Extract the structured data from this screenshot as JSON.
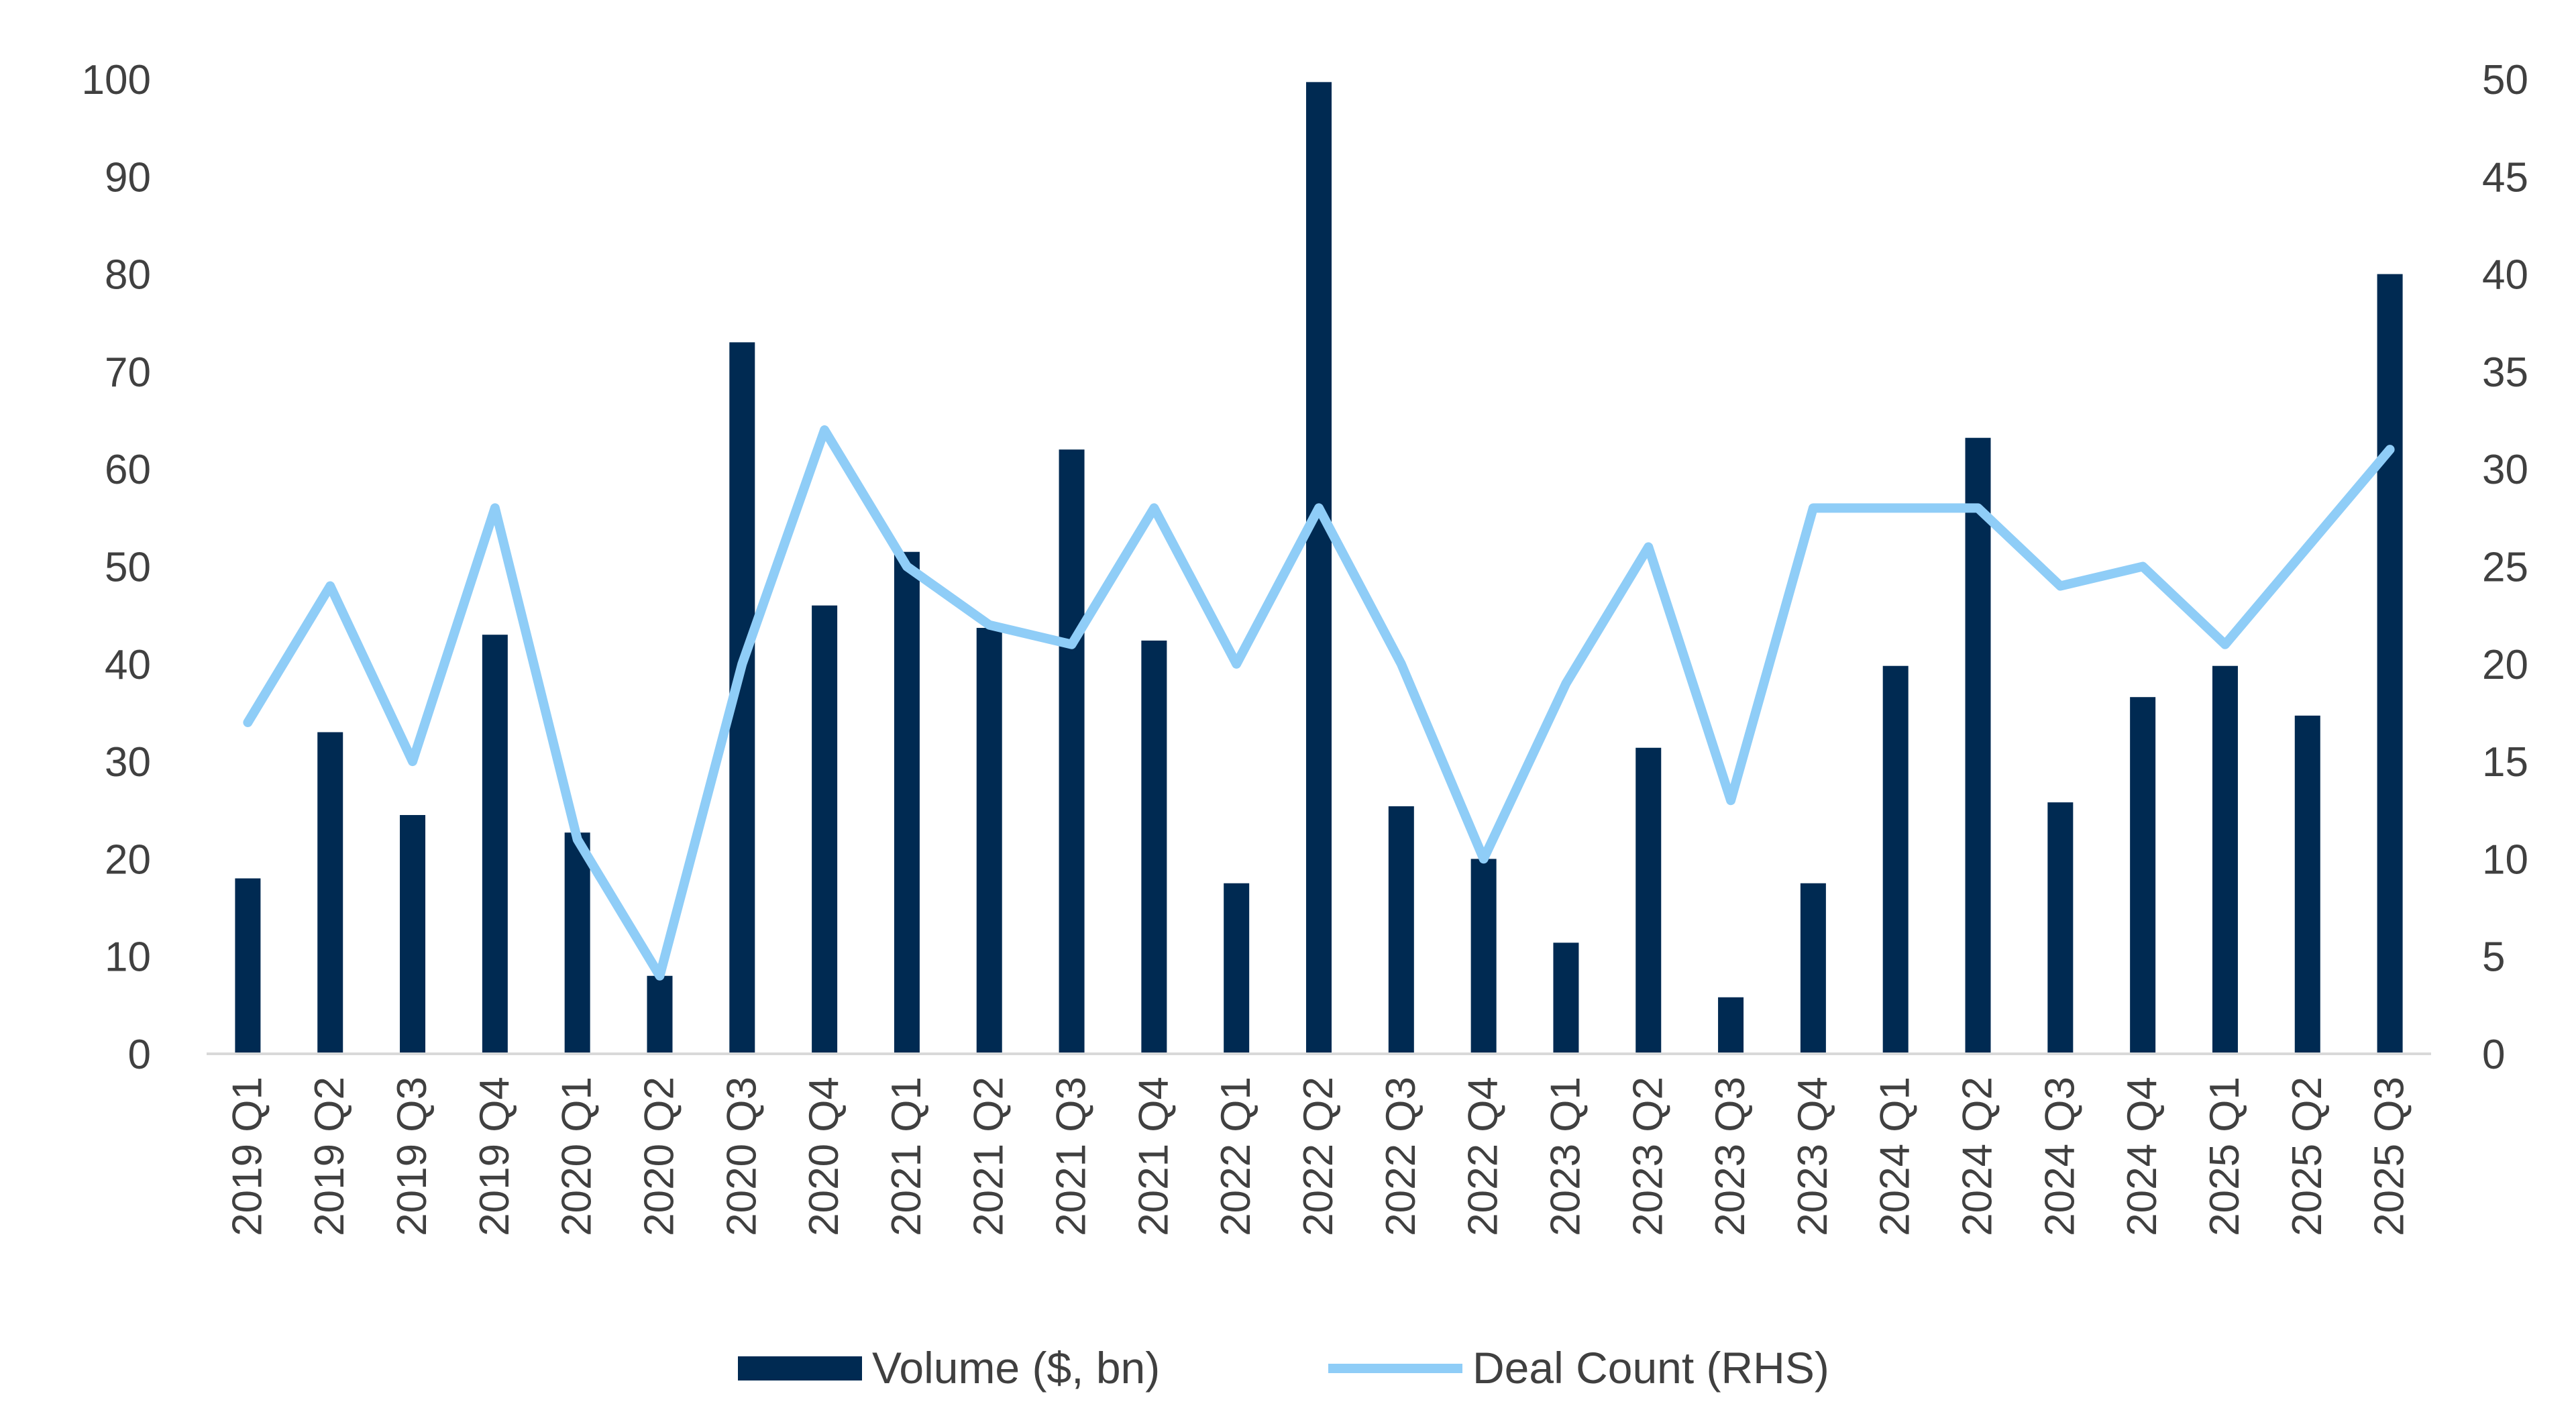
{
  "chart_data": {
    "type": "bar+line",
    "title": "",
    "categories": [
      "2019 Q1",
      "2019 Q2",
      "2019 Q3",
      "2019 Q4",
      "2020 Q1",
      "2020 Q2",
      "2020 Q3",
      "2020 Q4",
      "2021 Q1",
      "2021 Q2",
      "2021 Q3",
      "2021 Q4",
      "2022 Q1",
      "2022 Q2",
      "2022 Q3",
      "2022 Q4",
      "2023 Q1",
      "2023 Q2",
      "2023 Q3",
      "2023 Q4",
      "2024 Q1",
      "2024 Q2",
      "2024 Q3",
      "2024 Q4",
      "2025 Q1",
      "2025 Q2",
      "2025 Q3"
    ],
    "series": [
      {
        "name": "Volume ($, bn)",
        "type": "bar",
        "axis": "left",
        "color": "#002a52",
        "values": [
          18,
          33,
          24.5,
          43,
          22.7,
          8,
          73,
          46,
          51.5,
          43.7,
          62,
          42.4,
          17.5,
          99.7,
          25.4,
          20,
          11.4,
          31.4,
          5.8,
          17.5,
          39.8,
          63.2,
          25.8,
          36.6,
          39.8,
          34.7,
          80
        ]
      },
      {
        "name": "Deal Count (RHS)",
        "type": "line",
        "axis": "right",
        "color": "#8fcdf7",
        "values": [
          17,
          24,
          15,
          28,
          11,
          4,
          20,
          32,
          25,
          22,
          21,
          28,
          20,
          28,
          20,
          10,
          19,
          26,
          13,
          28,
          28,
          28,
          24,
          25,
          21,
          26,
          31
        ]
      }
    ],
    "y_left": {
      "lim": [
        0,
        100
      ],
      "ticks": [
        "0",
        "10",
        "20",
        "30",
        "40",
        "50",
        "60",
        "70",
        "80",
        "90",
        "100"
      ]
    },
    "y_right": {
      "lim": [
        0,
        50
      ],
      "ticks": [
        "0",
        "5",
        "10",
        "15",
        "20",
        "25",
        "30",
        "35",
        "40",
        "45",
        "50"
      ]
    },
    "grid": false,
    "legend_position": "bottom"
  }
}
